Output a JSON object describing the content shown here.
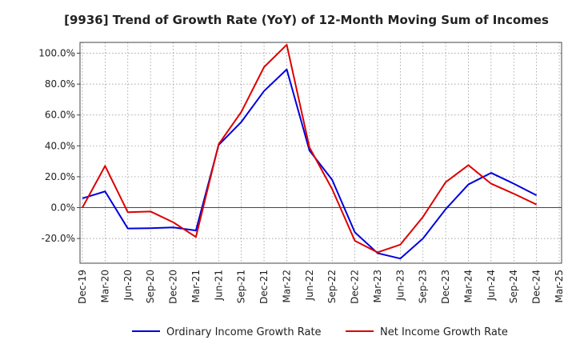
{
  "chart_data": {
    "type": "line",
    "title": "[9936]  Trend of Growth Rate (YoY) of 12-Month Moving Sum of Incomes",
    "xlabel": "",
    "ylabel": "",
    "x": [
      "Dec-19",
      "Mar-20",
      "Jun-20",
      "Sep-20",
      "Dec-20",
      "Mar-21",
      "Jun-21",
      "Sep-21",
      "Dec-21",
      "Mar-22",
      "Jun-22",
      "Sep-22",
      "Dec-22",
      "Mar-23",
      "Jun-23",
      "Sep-23",
      "Dec-23",
      "Mar-24",
      "Jun-24",
      "Sep-24",
      "Dec-24",
      "Mar-25"
    ],
    "yticks": [
      -20,
      0,
      20,
      40,
      60,
      80,
      100
    ],
    "ytick_labels": [
      "-20.0%",
      "0.0%",
      "20.0%",
      "40.0%",
      "60.0%",
      "80.0%",
      "100.0%"
    ],
    "ylim": [
      -36,
      107
    ],
    "grid": true,
    "legend_position": "bottom",
    "series": [
      {
        "name": "Ordinary Income Growth Rate",
        "color": "#0000dd",
        "values": [
          6,
          10.5,
          -13.5,
          -13.3,
          -12.8,
          -14.8,
          40.5,
          55.5,
          75.5,
          89.5,
          37,
          18,
          -16,
          -29.5,
          -33,
          -20,
          -1,
          15,
          22.5,
          15.5,
          8,
          null
        ]
      },
      {
        "name": "Net Income Growth Rate",
        "color": "#dd0000",
        "values": [
          0,
          27,
          -3,
          -2.5,
          -9.5,
          -19,
          41,
          62,
          91,
          105.5,
          39,
          12,
          -21.5,
          -29,
          -24,
          -6,
          16.5,
          27.5,
          15.5,
          9,
          2,
          null
        ]
      }
    ]
  }
}
